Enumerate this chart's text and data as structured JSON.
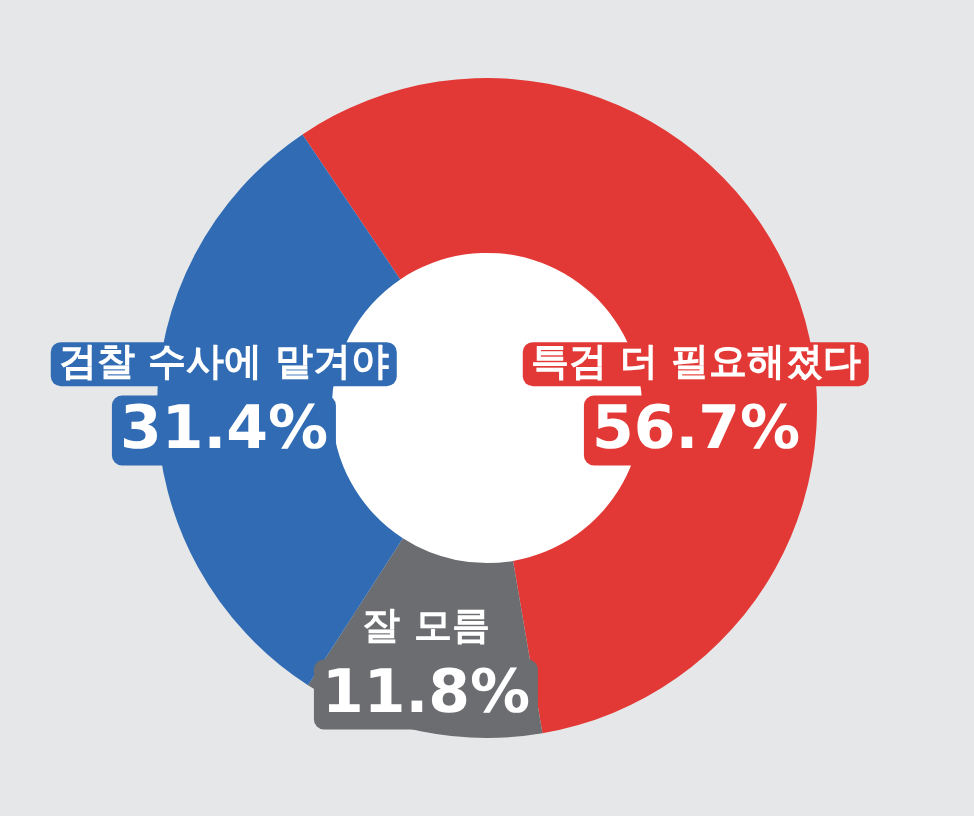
{
  "chart_data": {
    "type": "donut",
    "categories": [
      "특검 더 필요해졌다",
      "잘 모름",
      "검찰 수사에 맡겨야"
    ],
    "values": [
      56.7,
      11.8,
      31.4
    ],
    "colors": [
      "#e33936",
      "#6c6d70",
      "#306bb3"
    ],
    "value_labels": [
      "56.7%",
      "11.8%",
      "31.4%"
    ],
    "legend": false
  }
}
